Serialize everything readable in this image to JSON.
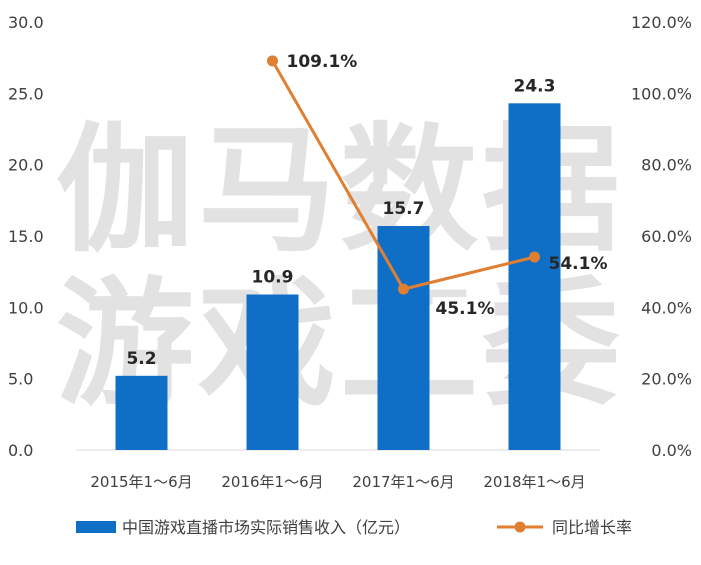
{
  "watermark": {
    "line1": "伽马数据",
    "line2": "游戏工委"
  },
  "colors": {
    "bars": "#0f6fc6",
    "line": "#e07f32",
    "text": "#404040",
    "label": "#262626",
    "axis": "#d9d9d9"
  },
  "chart_data": {
    "type": "bar",
    "categories": [
      "2015年1～6月",
      "2016年1～6月",
      "2017年1～6月",
      "2018年1～6月"
    ],
    "series": [
      {
        "name": "中国游戏直播市场实际销售收入（亿元）",
        "type": "bar",
        "axis": "left",
        "values": [
          5.2,
          10.9,
          15.7,
          24.3
        ],
        "labels": [
          "5.2",
          "10.9",
          "15.7",
          "24.3"
        ]
      },
      {
        "name": "同比增长率",
        "type": "line",
        "axis": "right",
        "values": [
          null,
          109.1,
          45.1,
          54.1
        ],
        "labels": [
          "",
          "109.1%",
          "45.1%",
          "54.1%"
        ]
      }
    ],
    "ylim": [
      0,
      30
    ],
    "yticks": [
      "0.0",
      "5.0",
      "10.0",
      "15.0",
      "20.0",
      "25.0",
      "30.0"
    ],
    "y2lim": [
      0,
      120
    ],
    "y2ticks": [
      "0.0%",
      "20.0%",
      "40.0%",
      "60.0%",
      "80.0%",
      "100.0%",
      "120.0%"
    ],
    "grid": false,
    "legend_position": "bottom"
  }
}
